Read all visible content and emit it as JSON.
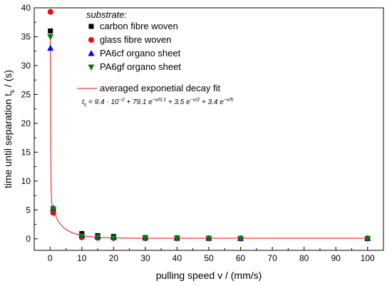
{
  "chart_data": {
    "type": "scatter",
    "xlabel": "pulling speed v / (mm/s)",
    "ylabel": "time until separation t",
    "ylabel_sub": "s",
    "ylabel_unit": " / (s)",
    "xlim": [
      -5,
      105
    ],
    "ylim": [
      -2,
      40
    ],
    "x_ticks": [
      0,
      10,
      20,
      30,
      40,
      50,
      60,
      70,
      80,
      90,
      100
    ],
    "y_ticks": [
      0,
      5,
      10,
      15,
      20,
      25,
      30,
      35,
      40
    ],
    "legend_title": "substrate:",
    "legend_position": "top-center",
    "series": [
      {
        "name": "carbon fibre woven",
        "marker": "square",
        "color": "#000000",
        "x": [
          0.1,
          1,
          10,
          15,
          20,
          30,
          40,
          50,
          60,
          100
        ],
        "y": [
          36.0,
          5.0,
          0.9,
          0.55,
          0.4,
          0.2,
          0.15,
          0.1,
          0.08,
          0.05
        ]
      },
      {
        "name": "glass fibre woven",
        "marker": "circle",
        "color": "#ff0000",
        "x": [
          0.1,
          1,
          10,
          15,
          20,
          30,
          40,
          50,
          60,
          100
        ],
        "y": [
          39.3,
          4.5,
          0.25,
          0.15,
          0.12,
          0.1,
          0.08,
          0.07,
          0.06,
          0.05
        ]
      },
      {
        "name": "PA6cf organo sheet",
        "marker": "triangle-up",
        "color": "#0000ff",
        "x": [
          0.1,
          1,
          10,
          15,
          20,
          30,
          40,
          50,
          60,
          100
        ],
        "y": [
          33.0,
          5.3,
          0.6,
          0.35,
          0.25,
          0.15,
          0.1,
          0.08,
          0.06,
          0.05
        ]
      },
      {
        "name": "PA6gf organo sheet",
        "marker": "triangle-down",
        "color": "#008000",
        "x": [
          0.1,
          1,
          10,
          15,
          20,
          30,
          40,
          50,
          60,
          100
        ],
        "y": [
          35.0,
          5.2,
          0.5,
          0.3,
          0.2,
          0.12,
          0.1,
          0.08,
          0.06,
          0.05
        ]
      }
    ],
    "fit": {
      "name": "averaged exponetial decay fit",
      "color": "#ff0000",
      "y0": 0.094,
      "terms": [
        {
          "a": 79.1,
          "tau": 0.1
        },
        {
          "a": 3.5,
          "tau": 2
        },
        {
          "a": 3.4,
          "tau": 5
        }
      ]
    }
  }
}
